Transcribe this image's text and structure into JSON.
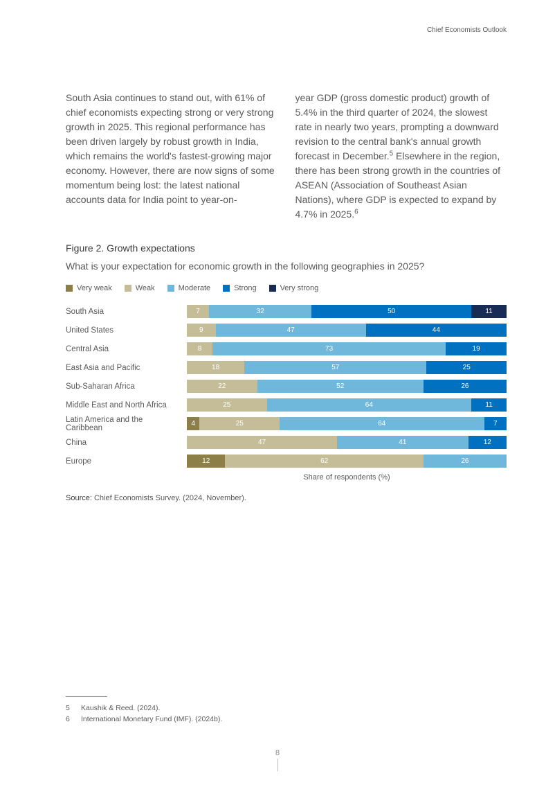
{
  "header": {
    "doc_title": "Chief Economists Outlook"
  },
  "body": {
    "col1": "South Asia continues to stand out, with 61% of chief economists expecting strong or very strong growth in 2025. This regional performance has been driven largely by robust growth in India, which remains the world's fastest-growing major economy. However, there are now signs of some momentum being lost: the latest national accounts data for India point to year-on-",
    "col2_a": "year GDP (gross domestic product) growth of 5.4% in the third quarter of 2024, the slowest rate in nearly two years, prompting a downward revision to the central bank's annual growth forecast in December.",
    "col2_sup1": "5",
    "col2_b": " Elsewhere in the region, there has been strong growth in the countries of ASEAN (Association of Southeast Asian Nations), where GDP is expected to expand by 4.7% in 2025.",
    "col2_sup2": "6"
  },
  "figure": {
    "title": "Figure 2. Growth expectations",
    "subtitle": "What is your expectation for economic growth in the following geographies in 2025?",
    "axis_label": "Share of respondents (%)",
    "legend": [
      {
        "label": "Very weak",
        "color": "#8c8048"
      },
      {
        "label": "Weak",
        "color": "#c4bd97"
      },
      {
        "label": "Moderate",
        "color": "#6fb8dc"
      },
      {
        "label": "Strong",
        "color": "#0070c0"
      },
      {
        "label": "Very strong",
        "color": "#172b54"
      }
    ],
    "rows": [
      {
        "label": "South Asia",
        "segments": [
          {
            "v": 0,
            "hide": true
          },
          {
            "v": 7
          },
          {
            "v": 32
          },
          {
            "v": 50
          },
          {
            "v": 11
          }
        ]
      },
      {
        "label": "United States",
        "segments": [
          {
            "v": 0,
            "hide": true
          },
          {
            "v": 9
          },
          {
            "v": 47
          },
          {
            "v": 44
          },
          {
            "v": 0,
            "hide": true
          }
        ]
      },
      {
        "label": "Central Asia",
        "segments": [
          {
            "v": 0,
            "hide": true
          },
          {
            "v": 8
          },
          {
            "v": 73
          },
          {
            "v": 19
          },
          {
            "v": 0,
            "hide": true
          }
        ]
      },
      {
        "label": "East Asia and Pacific",
        "segments": [
          {
            "v": 0,
            "hide": true
          },
          {
            "v": 18
          },
          {
            "v": 57
          },
          {
            "v": 25
          },
          {
            "v": 0,
            "hide": true
          }
        ]
      },
      {
        "label": "Sub-Saharan Africa",
        "segments": [
          {
            "v": 0,
            "hide": true
          },
          {
            "v": 22
          },
          {
            "v": 52
          },
          {
            "v": 26
          },
          {
            "v": 0,
            "hide": true
          }
        ]
      },
      {
        "label": "Middle East and North Africa",
        "segments": [
          {
            "v": 0,
            "hide": true
          },
          {
            "v": 25
          },
          {
            "v": 64
          },
          {
            "v": 11
          },
          {
            "v": 0,
            "hide": true
          }
        ]
      },
      {
        "label": "Latin America and the Caribbean",
        "segments": [
          {
            "v": 4
          },
          {
            "v": 25
          },
          {
            "v": 64
          },
          {
            "v": 7
          },
          {
            "v": 0,
            "hide": true
          }
        ]
      },
      {
        "label": "China",
        "segments": [
          {
            "v": 0,
            "hide": true
          },
          {
            "v": 47
          },
          {
            "v": 41
          },
          {
            "v": 12
          },
          {
            "v": 0,
            "hide": true
          }
        ]
      },
      {
        "label": "Europe",
        "segments": [
          {
            "v": 12
          },
          {
            "v": 62
          },
          {
            "v": 26
          },
          {
            "v": 0,
            "hide": true
          },
          {
            "v": 0,
            "hide": true
          }
        ]
      }
    ],
    "source_label": "Source:",
    "source_text": " Chief Economists Survey. (2024, November)."
  },
  "footnotes": {
    "items": [
      {
        "num": "5",
        "text": "Kaushik & Reed. (2024)."
      },
      {
        "num": "6",
        "text": "International Monetary Fund (IMF). (2024b)."
      }
    ]
  },
  "page_number": "8"
}
